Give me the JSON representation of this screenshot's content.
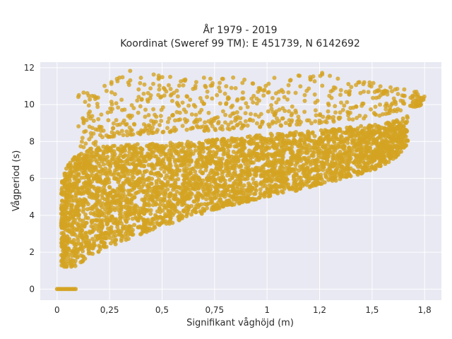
{
  "chart_data": {
    "type": "scatter",
    "title_line1": "År 1979 - 2019",
    "title_line2": "Koordinat (Sweref 99 TM): E 451739, N 6142692",
    "xlabel": "Signifikant våghöjd (m)",
    "ylabel": "Vågperiod (s)",
    "xlim": [
      -0.08,
      1.83
    ],
    "ylim": [
      -0.6,
      12.3
    ],
    "xticks": [
      0,
      0.25,
      0.5,
      0.75,
      1,
      1.25,
      1.5,
      1.75
    ],
    "xtick_labels": [
      "0",
      "0,25",
      "0,5",
      "0,75",
      "1",
      "1,2",
      "1,5",
      "1,8"
    ],
    "yticks": [
      0,
      2,
      4,
      6,
      8,
      10,
      12
    ],
    "ytick_labels": [
      "0",
      "2",
      "4",
      "6",
      "8",
      "10",
      "12"
    ],
    "grid": true,
    "colors": {
      "marker": "#d4a322",
      "plot_bg": "#e8e9f2",
      "grid": "#ffffff"
    },
    "density_band": {
      "lower": [
        [
          0.02,
          1.2
        ],
        [
          0.08,
          1.2
        ],
        [
          0.15,
          1.7
        ],
        [
          0.25,
          2.3
        ],
        [
          0.5,
          3.4
        ],
        [
          0.75,
          4.3
        ],
        [
          1.0,
          5.0
        ],
        [
          1.25,
          5.6
        ],
        [
          1.5,
          6.4
        ],
        [
          1.6,
          7.0
        ],
        [
          1.67,
          7.8
        ]
      ],
      "upper": [
        [
          0.02,
          6.0
        ],
        [
          0.08,
          7.3
        ],
        [
          0.15,
          7.6
        ],
        [
          0.25,
          7.8
        ],
        [
          0.5,
          7.9
        ],
        [
          0.75,
          8.1
        ],
        [
          1.0,
          8.4
        ],
        [
          1.25,
          8.6
        ],
        [
          1.5,
          8.9
        ],
        [
          1.6,
          9.1
        ],
        [
          1.67,
          9.4
        ]
      ]
    },
    "outlier_band": {
      "lower": [
        [
          0.1,
          6.0
        ],
        [
          0.2,
          8.2
        ],
        [
          0.5,
          8.5
        ],
        [
          0.75,
          8.6
        ],
        [
          1.0,
          8.8
        ],
        [
          1.25,
          9.0
        ],
        [
          1.5,
          9.3
        ],
        [
          1.75,
          10.0
        ]
      ],
      "upper": [
        [
          0.1,
          10.6
        ],
        [
          0.2,
          11.2
        ],
        [
          0.3,
          11.9
        ],
        [
          0.5,
          11.6
        ],
        [
          0.75,
          11.5
        ],
        [
          1.0,
          11.4
        ],
        [
          1.25,
          11.8
        ],
        [
          1.5,
          11.2
        ],
        [
          1.75,
          10.6
        ]
      ]
    },
    "zero_points": {
      "x": [
        0.0,
        0.09
      ],
      "y": 0
    }
  }
}
